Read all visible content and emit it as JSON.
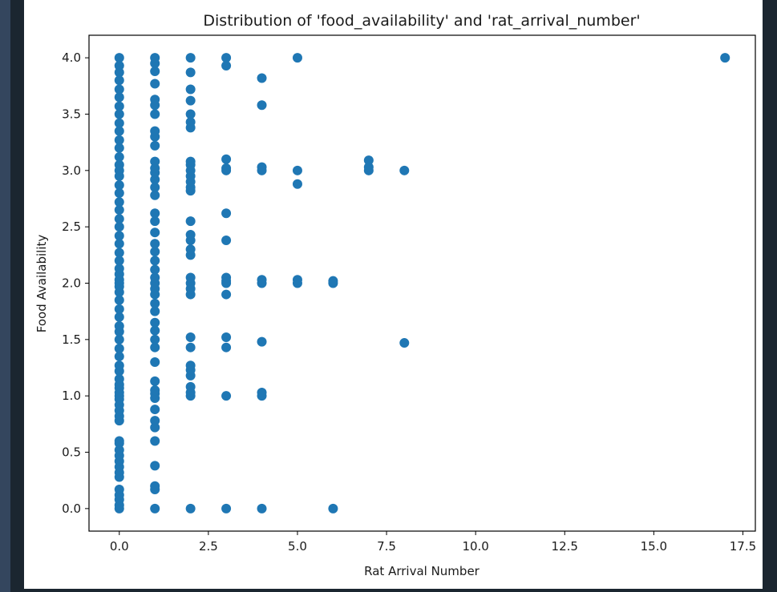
{
  "chart_data": {
    "type": "scatter",
    "title": "Distribution of 'food_availability' and 'rat_arrival_number'",
    "xlabel": "Rat Arrival Number",
    "ylabel": "Food Availability",
    "xlim": [
      -0.85,
      17.85
    ],
    "ylim": [
      -0.2,
      4.2
    ],
    "x_ticks": [
      "0.0",
      "2.5",
      "5.0",
      "7.5",
      "10.0",
      "12.5",
      "15.0",
      "17.5"
    ],
    "x_tick_values": [
      0,
      2.5,
      5,
      7.5,
      10,
      12.5,
      15,
      17.5
    ],
    "y_ticks": [
      "0.0",
      "0.5",
      "1.0",
      "1.5",
      "2.0",
      "2.5",
      "3.0",
      "3.5",
      "4.0"
    ],
    "y_tick_values": [
      0,
      0.5,
      1,
      1.5,
      2,
      2.5,
      3,
      3.5,
      4
    ],
    "grid": false,
    "marker_color": "#1f77b4",
    "series": [
      {
        "points": [
          [
            0,
            0
          ],
          [
            0,
            0.03
          ],
          [
            0,
            0.08
          ],
          [
            0,
            0.12
          ],
          [
            0,
            0.17
          ],
          [
            0,
            0.28
          ],
          [
            0,
            0.32
          ],
          [
            0,
            0.37
          ],
          [
            0,
            0.42
          ],
          [
            0,
            0.47
          ],
          [
            0,
            0.52
          ],
          [
            0,
            0.58
          ],
          [
            0,
            0.6
          ],
          [
            0,
            0.78
          ],
          [
            0,
            0.82
          ],
          [
            0,
            0.87
          ],
          [
            0,
            0.92
          ],
          [
            0,
            0.97
          ],
          [
            0,
            1.0
          ],
          [
            0,
            1.03
          ],
          [
            0,
            1.07
          ],
          [
            0,
            1.1
          ],
          [
            0,
            1.15
          ],
          [
            0,
            1.22
          ],
          [
            0,
            1.27
          ],
          [
            0,
            1.35
          ],
          [
            0,
            1.42
          ],
          [
            0,
            1.5
          ],
          [
            0,
            1.57
          ],
          [
            0,
            1.62
          ],
          [
            0,
            1.7
          ],
          [
            0,
            1.77
          ],
          [
            0,
            1.85
          ],
          [
            0,
            1.92
          ],
          [
            0,
            1.97
          ],
          [
            0,
            2.0
          ],
          [
            0,
            2.03
          ],
          [
            0,
            2.08
          ],
          [
            0,
            2.13
          ],
          [
            0,
            2.2
          ],
          [
            0,
            2.27
          ],
          [
            0,
            2.35
          ],
          [
            0,
            2.42
          ],
          [
            0,
            2.5
          ],
          [
            0,
            2.57
          ],
          [
            0,
            2.65
          ],
          [
            0,
            2.72
          ],
          [
            0,
            2.8
          ],
          [
            0,
            2.87
          ],
          [
            0,
            2.95
          ],
          [
            0,
            3.0
          ],
          [
            0,
            3.05
          ],
          [
            0,
            3.12
          ],
          [
            0,
            3.2
          ],
          [
            0,
            3.27
          ],
          [
            0,
            3.35
          ],
          [
            0,
            3.42
          ],
          [
            0,
            3.5
          ],
          [
            0,
            3.57
          ],
          [
            0,
            3.65
          ],
          [
            0,
            3.72
          ],
          [
            0,
            3.8
          ],
          [
            0,
            3.87
          ],
          [
            0,
            3.93
          ],
          [
            0,
            4.0
          ],
          [
            1,
            0
          ],
          [
            1,
            0.17
          ],
          [
            1,
            0.2
          ],
          [
            1,
            0.38
          ],
          [
            1,
            0.6
          ],
          [
            1,
            0.72
          ],
          [
            1,
            0.78
          ],
          [
            1,
            0.88
          ],
          [
            1,
            0.98
          ],
          [
            1,
            1.02
          ],
          [
            1,
            1.05
          ],
          [
            1,
            1.13
          ],
          [
            1,
            1.3
          ],
          [
            1,
            1.43
          ],
          [
            1,
            1.5
          ],
          [
            1,
            1.58
          ],
          [
            1,
            1.65
          ],
          [
            1,
            1.75
          ],
          [
            1,
            1.82
          ],
          [
            1,
            1.9
          ],
          [
            1,
            1.95
          ],
          [
            1,
            2.0
          ],
          [
            1,
            2.05
          ],
          [
            1,
            2.12
          ],
          [
            1,
            2.2
          ],
          [
            1,
            2.28
          ],
          [
            1,
            2.35
          ],
          [
            1,
            2.45
          ],
          [
            1,
            2.55
          ],
          [
            1,
            2.62
          ],
          [
            1,
            2.78
          ],
          [
            1,
            2.85
          ],
          [
            1,
            2.92
          ],
          [
            1,
            2.98
          ],
          [
            1,
            3.02
          ],
          [
            1,
            3.08
          ],
          [
            1,
            3.22
          ],
          [
            1,
            3.3
          ],
          [
            1,
            3.35
          ],
          [
            1,
            3.5
          ],
          [
            1,
            3.58
          ],
          [
            1,
            3.63
          ],
          [
            1,
            3.77
          ],
          [
            1,
            3.88
          ],
          [
            1,
            3.95
          ],
          [
            1,
            4.0
          ],
          [
            2,
            0
          ],
          [
            2,
            1.0
          ],
          [
            2,
            1.03
          ],
          [
            2,
            1.08
          ],
          [
            2,
            1.18
          ],
          [
            2,
            1.23
          ],
          [
            2,
            1.27
          ],
          [
            2,
            1.43
          ],
          [
            2,
            1.52
          ],
          [
            2,
            1.9
          ],
          [
            2,
            1.95
          ],
          [
            2,
            2.0
          ],
          [
            2,
            2.05
          ],
          [
            2,
            2.25
          ],
          [
            2,
            2.3
          ],
          [
            2,
            2.38
          ],
          [
            2,
            2.43
          ],
          [
            2,
            2.55
          ],
          [
            2,
            2.82
          ],
          [
            2,
            2.85
          ],
          [
            2,
            2.9
          ],
          [
            2,
            2.95
          ],
          [
            2,
            3.0
          ],
          [
            2,
            3.05
          ],
          [
            2,
            3.08
          ],
          [
            2,
            3.38
          ],
          [
            2,
            3.43
          ],
          [
            2,
            3.5
          ],
          [
            2,
            3.62
          ],
          [
            2,
            3.72
          ],
          [
            2,
            3.87
          ],
          [
            2,
            4.0
          ],
          [
            3,
            0
          ],
          [
            3,
            1.0
          ],
          [
            3,
            1.43
          ],
          [
            3,
            1.52
          ],
          [
            3,
            1.9
          ],
          [
            3,
            2.0
          ],
          [
            3,
            2.02
          ],
          [
            3,
            2.05
          ],
          [
            3,
            2.38
          ],
          [
            3,
            2.62
          ],
          [
            3,
            3.0
          ],
          [
            3,
            3.02
          ],
          [
            3,
            3.1
          ],
          [
            3,
            3.93
          ],
          [
            3,
            4.0
          ],
          [
            4,
            0
          ],
          [
            4,
            1.0
          ],
          [
            4,
            1.03
          ],
          [
            4,
            1.48
          ],
          [
            4,
            2.0
          ],
          [
            4,
            2.03
          ],
          [
            4,
            3.0
          ],
          [
            4,
            3.03
          ],
          [
            4,
            3.58
          ],
          [
            4,
            3.82
          ],
          [
            5,
            2.0
          ],
          [
            5,
            2.03
          ],
          [
            5,
            2.88
          ],
          [
            5,
            3.0
          ],
          [
            5,
            4.0
          ],
          [
            6,
            0
          ],
          [
            6,
            2.0
          ],
          [
            6,
            2.02
          ],
          [
            7,
            3.0
          ],
          [
            7,
            3.03
          ],
          [
            7,
            3.09
          ],
          [
            8,
            1.47
          ],
          [
            8,
            3.0
          ],
          [
            17,
            4.0
          ]
        ]
      }
    ]
  }
}
